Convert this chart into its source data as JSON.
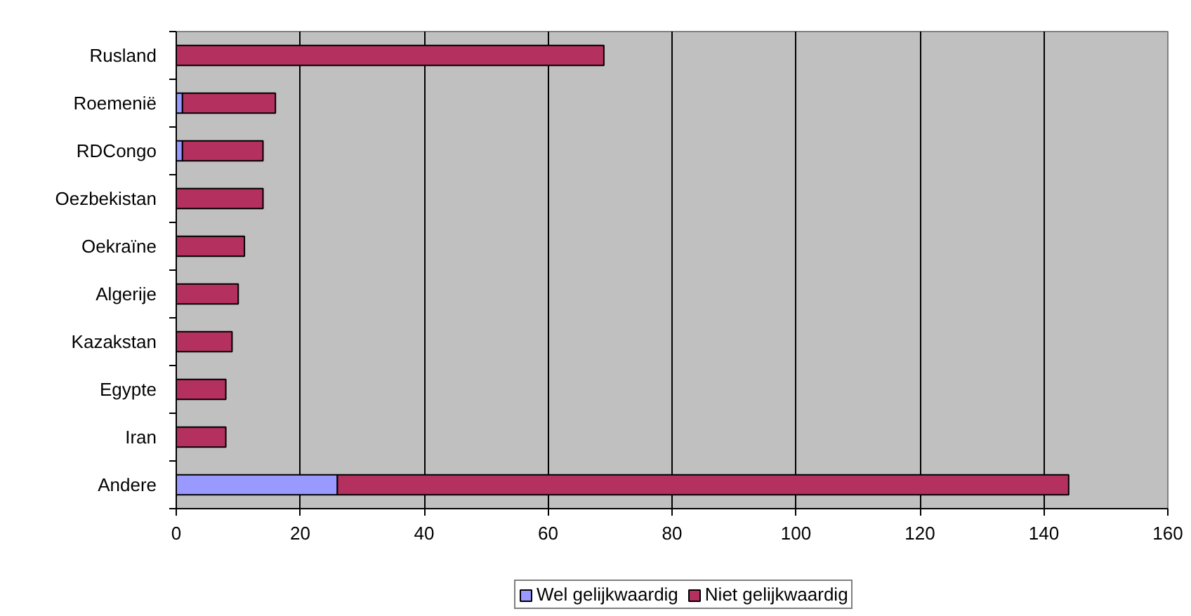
{
  "chart_data": {
    "type": "bar",
    "orientation": "horizontal",
    "stacked": true,
    "categories": [
      "Rusland",
      "Roemenië",
      "RDCongo",
      "Oezbekistan",
      "Oekraïne",
      "Algerije",
      "Kazakstan",
      "Egypte",
      "Iran",
      "Andere"
    ],
    "series": [
      {
        "name": "Wel gelijkwaardig",
        "color": "#9999ff",
        "values": [
          null,
          1,
          1,
          null,
          null,
          null,
          null,
          null,
          null,
          26
        ]
      },
      {
        "name": "Niet gelijkwaardig",
        "color": "#b3305f",
        "values": [
          69,
          15,
          13,
          14,
          11,
          10,
          9,
          8,
          8,
          118
        ]
      }
    ],
    "xlim": [
      0,
      160
    ],
    "xticks": [
      0,
      20,
      40,
      60,
      80,
      100,
      120,
      140,
      160
    ],
    "grid": "x",
    "legend": "bottom"
  }
}
